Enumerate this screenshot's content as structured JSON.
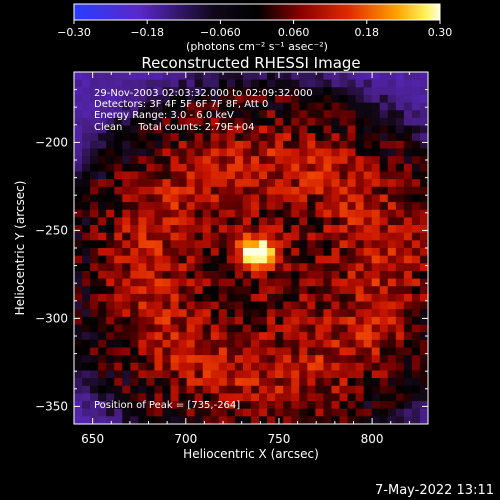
{
  "chart_data": {
    "type": "heatmap",
    "title": "Reconstructed RHESSI Image",
    "xlabel": "Heliocentric X (arcsec)",
    "ylabel": "Heliocentric Y (arcsec)",
    "xlim": [
      640,
      830
    ],
    "ylim": [
      -360,
      -160
    ],
    "xticks": [
      650,
      700,
      750,
      800
    ],
    "yticks": [
      -200,
      -250,
      -300,
      -350
    ],
    "colorbar": {
      "range": [
        -0.3,
        0.3
      ],
      "ticks": [
        "−0.30",
        "−0.18",
        "−0.060",
        "0.060",
        "0.18",
        "0.30"
      ],
      "unit_label": "(photons cm⁻² s⁻¹ asec⁻²)",
      "colormap": "purple-black-red-yellow-white"
    },
    "annotations": [
      "29-Nov-2003 02:03:32.000 to 02:09:32.000",
      "Detectors: 3F 4F 5F 6F 7F 8F, Att 0",
      "Energy Range: 3.0 - 6.0 keV",
      "Clean     Total counts: 2.79E+04"
    ],
    "peak_label": "Position of Peak = [735,-264]",
    "peak": {
      "x": 735,
      "y": -264
    },
    "image_range": {
      "min": -0.1,
      "max": 0.3
    },
    "features": [
      {
        "name": "bright source",
        "x": 738,
        "y": -262,
        "value": 0.3
      },
      {
        "name": "ring",
        "center_x": 742,
        "center_y": -272,
        "radius": 62,
        "value": 0.09
      }
    ]
  },
  "timestamp": "7-May-2022 13:11"
}
